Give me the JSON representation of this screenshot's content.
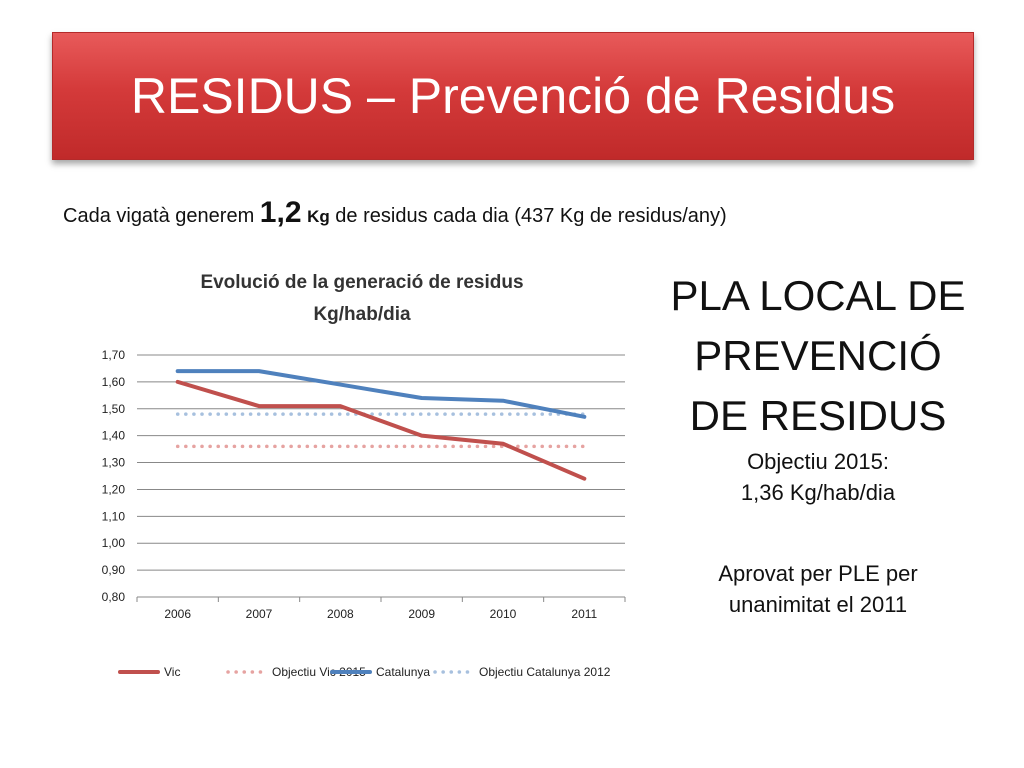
{
  "slide": {
    "title": "RESIDUS – Prevenció de Residus",
    "subtitle": {
      "prefix": "Cada vigatà generem ",
      "value": "1,2",
      "unit": "Kg",
      "suffix": " de residus cada dia (437 Kg de residus/any)"
    },
    "plan": {
      "line1": "PLA LOCAL DE",
      "line2": "PREVENCIÓ",
      "line3": "DE RESIDUS",
      "objective_label": "Objectiu 2015:",
      "objective_value": "1,36 Kg/hab/dia",
      "note_line1": "Aprovat per PLE per",
      "note_line2": "unanimitat el 2011"
    }
  },
  "colors": {
    "banner": "#d43a3a",
    "vic": "#c0504d",
    "vic_target": "#e6a3a1",
    "catalunya": "#4f81bd",
    "catalunya_target": "#a7c0de",
    "grid": "#888888"
  },
  "chart_data": {
    "type": "line",
    "title_line1": "Evolució de la generació de residus",
    "title_line2": "Kg/hab/dia",
    "categories": [
      "2006",
      "2007",
      "2008",
      "2009",
      "2010",
      "2011"
    ],
    "yticks": [
      "0,80",
      "0,90",
      "1,00",
      "1,10",
      "1,20",
      "1,30",
      "1,40",
      "1,50",
      "1,60",
      "1,70"
    ],
    "ylim": [
      0.8,
      1.7
    ],
    "grid": true,
    "legend_position": "bottom",
    "series": [
      {
        "name": "Vic",
        "values": [
          1.6,
          1.51,
          1.51,
          1.4,
          1.37,
          1.24
        ],
        "style": "solid",
        "color": "#c0504d"
      },
      {
        "name": "Objectiu Vic 2015",
        "values": [
          1.36,
          1.36,
          1.36,
          1.36,
          1.36,
          1.36
        ],
        "style": "dotted",
        "color": "#e6a3a1"
      },
      {
        "name": "Catalunya",
        "values": [
          1.64,
          1.64,
          1.59,
          1.54,
          1.53,
          1.47
        ],
        "style": "solid",
        "color": "#4f81bd"
      },
      {
        "name": "Objectiu Catalunya 2012",
        "values": [
          1.48,
          1.48,
          1.48,
          1.48,
          1.48,
          1.48
        ],
        "style": "dotted",
        "color": "#a7c0de"
      }
    ]
  }
}
